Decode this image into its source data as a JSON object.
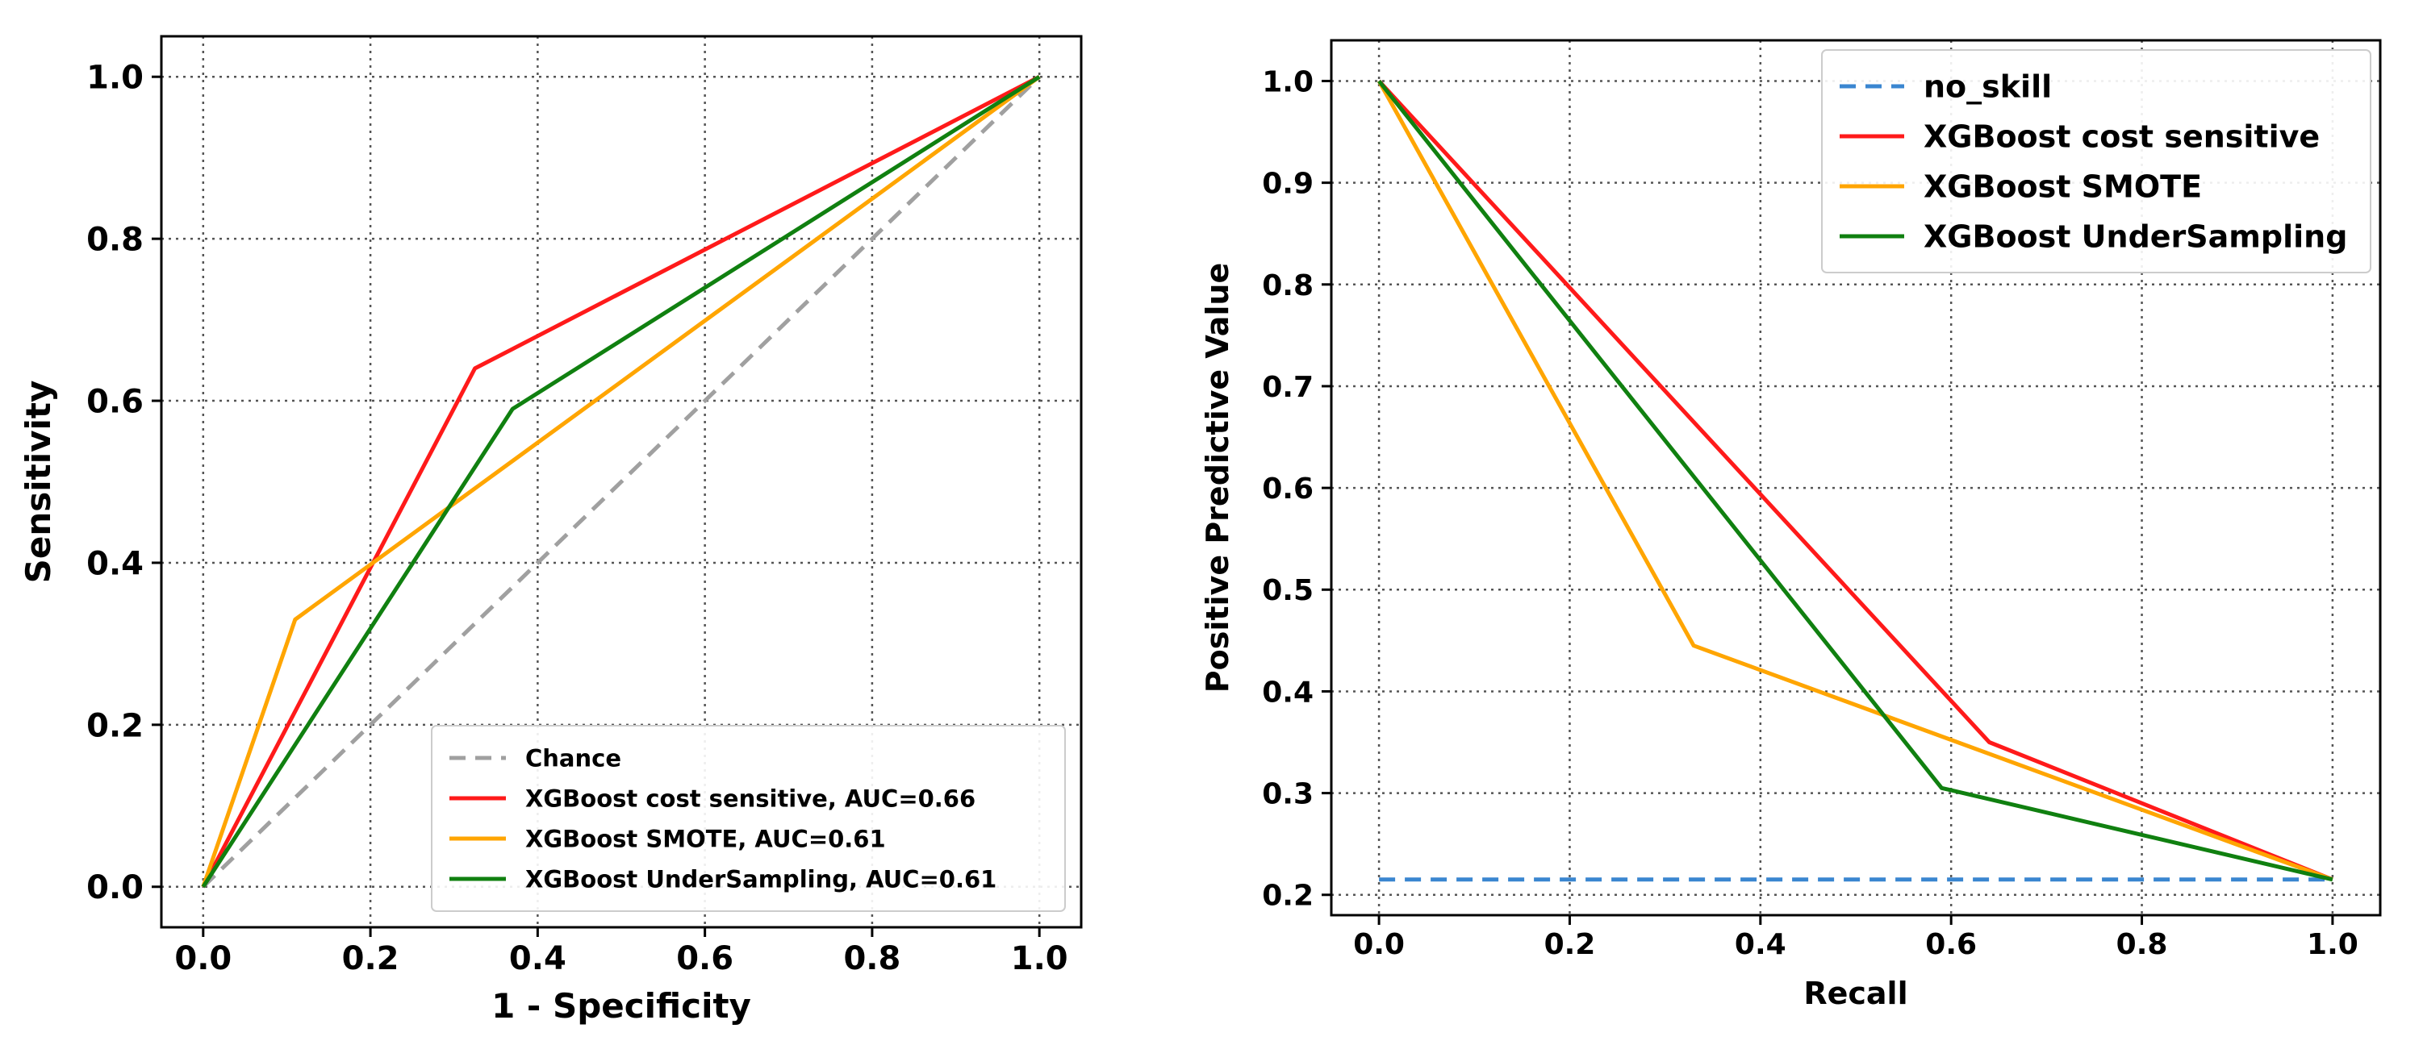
{
  "chart_data": [
    {
      "type": "line",
      "title": "",
      "xlabel": "1 - Specificity",
      "ylabel": "Sensitivity",
      "xlim": [
        -0.05,
        1.05
      ],
      "ylim": [
        -0.05,
        1.05
      ],
      "xticks": [
        0.0,
        0.2,
        0.4,
        0.6,
        0.8,
        1.0
      ],
      "yticks": [
        0.0,
        0.2,
        0.4,
        0.6,
        0.8,
        1.0
      ],
      "xtick_labels": [
        "0.0",
        "0.2",
        "0.4",
        "0.6",
        "0.8",
        "1.0"
      ],
      "ytick_labels": [
        "0.0",
        "0.2",
        "0.4",
        "0.6",
        "0.8",
        "1.0"
      ],
      "grid": true,
      "legend_position": "bottom-right",
      "series": [
        {
          "name": "Chance",
          "color": "#a0a0a0",
          "style": "dashed",
          "x": [
            0,
            1
          ],
          "y": [
            0,
            1
          ]
        },
        {
          "name": "XGBoost cost sensitive, AUC=0.66",
          "color": "#ff1a1a",
          "style": "solid",
          "x": [
            0,
            0.325,
            1
          ],
          "y": [
            0,
            0.64,
            1
          ]
        },
        {
          "name": "XGBoost SMOTE, AUC=0.61",
          "color": "#ffa500",
          "style": "solid",
          "x": [
            0,
            0.11,
            1
          ],
          "y": [
            0,
            0.33,
            1
          ]
        },
        {
          "name": "XGBoost UnderSampling, AUC=0.61",
          "color": "#108010",
          "style": "solid",
          "x": [
            0,
            0.37,
            1
          ],
          "y": [
            0,
            0.59,
            1
          ]
        }
      ]
    },
    {
      "type": "line",
      "title": "",
      "xlabel": "Recall",
      "ylabel": "Positive Predictive Value",
      "xlim": [
        -0.05,
        1.05
      ],
      "ylim": [
        0.18,
        1.04
      ],
      "xticks": [
        0.0,
        0.2,
        0.4,
        0.6,
        0.8,
        1.0
      ],
      "yticks": [
        0.2,
        0.3,
        0.4,
        0.5,
        0.6,
        0.7,
        0.8,
        0.9,
        1.0
      ],
      "xtick_labels": [
        "0.0",
        "0.2",
        "0.4",
        "0.6",
        "0.8",
        "1.0"
      ],
      "ytick_labels": [
        "0.2",
        "0.3",
        "0.4",
        "0.5",
        "0.6",
        "0.7",
        "0.8",
        "0.9",
        "1.0"
      ],
      "grid": true,
      "legend_position": "top-right",
      "series": [
        {
          "name": "no_skill",
          "color": "#3a86d0",
          "style": "dashed",
          "x": [
            0,
            1
          ],
          "y": [
            0.215,
            0.215
          ]
        },
        {
          "name": "XGBoost cost sensitive",
          "color": "#ff1a1a",
          "style": "solid",
          "x": [
            0,
            0.64,
            1
          ],
          "y": [
            1.0,
            0.35,
            0.215
          ]
        },
        {
          "name": "XGBoost SMOTE",
          "color": "#ffa500",
          "style": "solid",
          "x": [
            0,
            0.33,
            1
          ],
          "y": [
            1.0,
            0.445,
            0.215
          ]
        },
        {
          "name": "XGBoost UnderSampling",
          "color": "#108010",
          "style": "solid",
          "x": [
            0,
            0.59,
            1
          ],
          "y": [
            1.0,
            0.305,
            0.215
          ]
        }
      ]
    }
  ]
}
